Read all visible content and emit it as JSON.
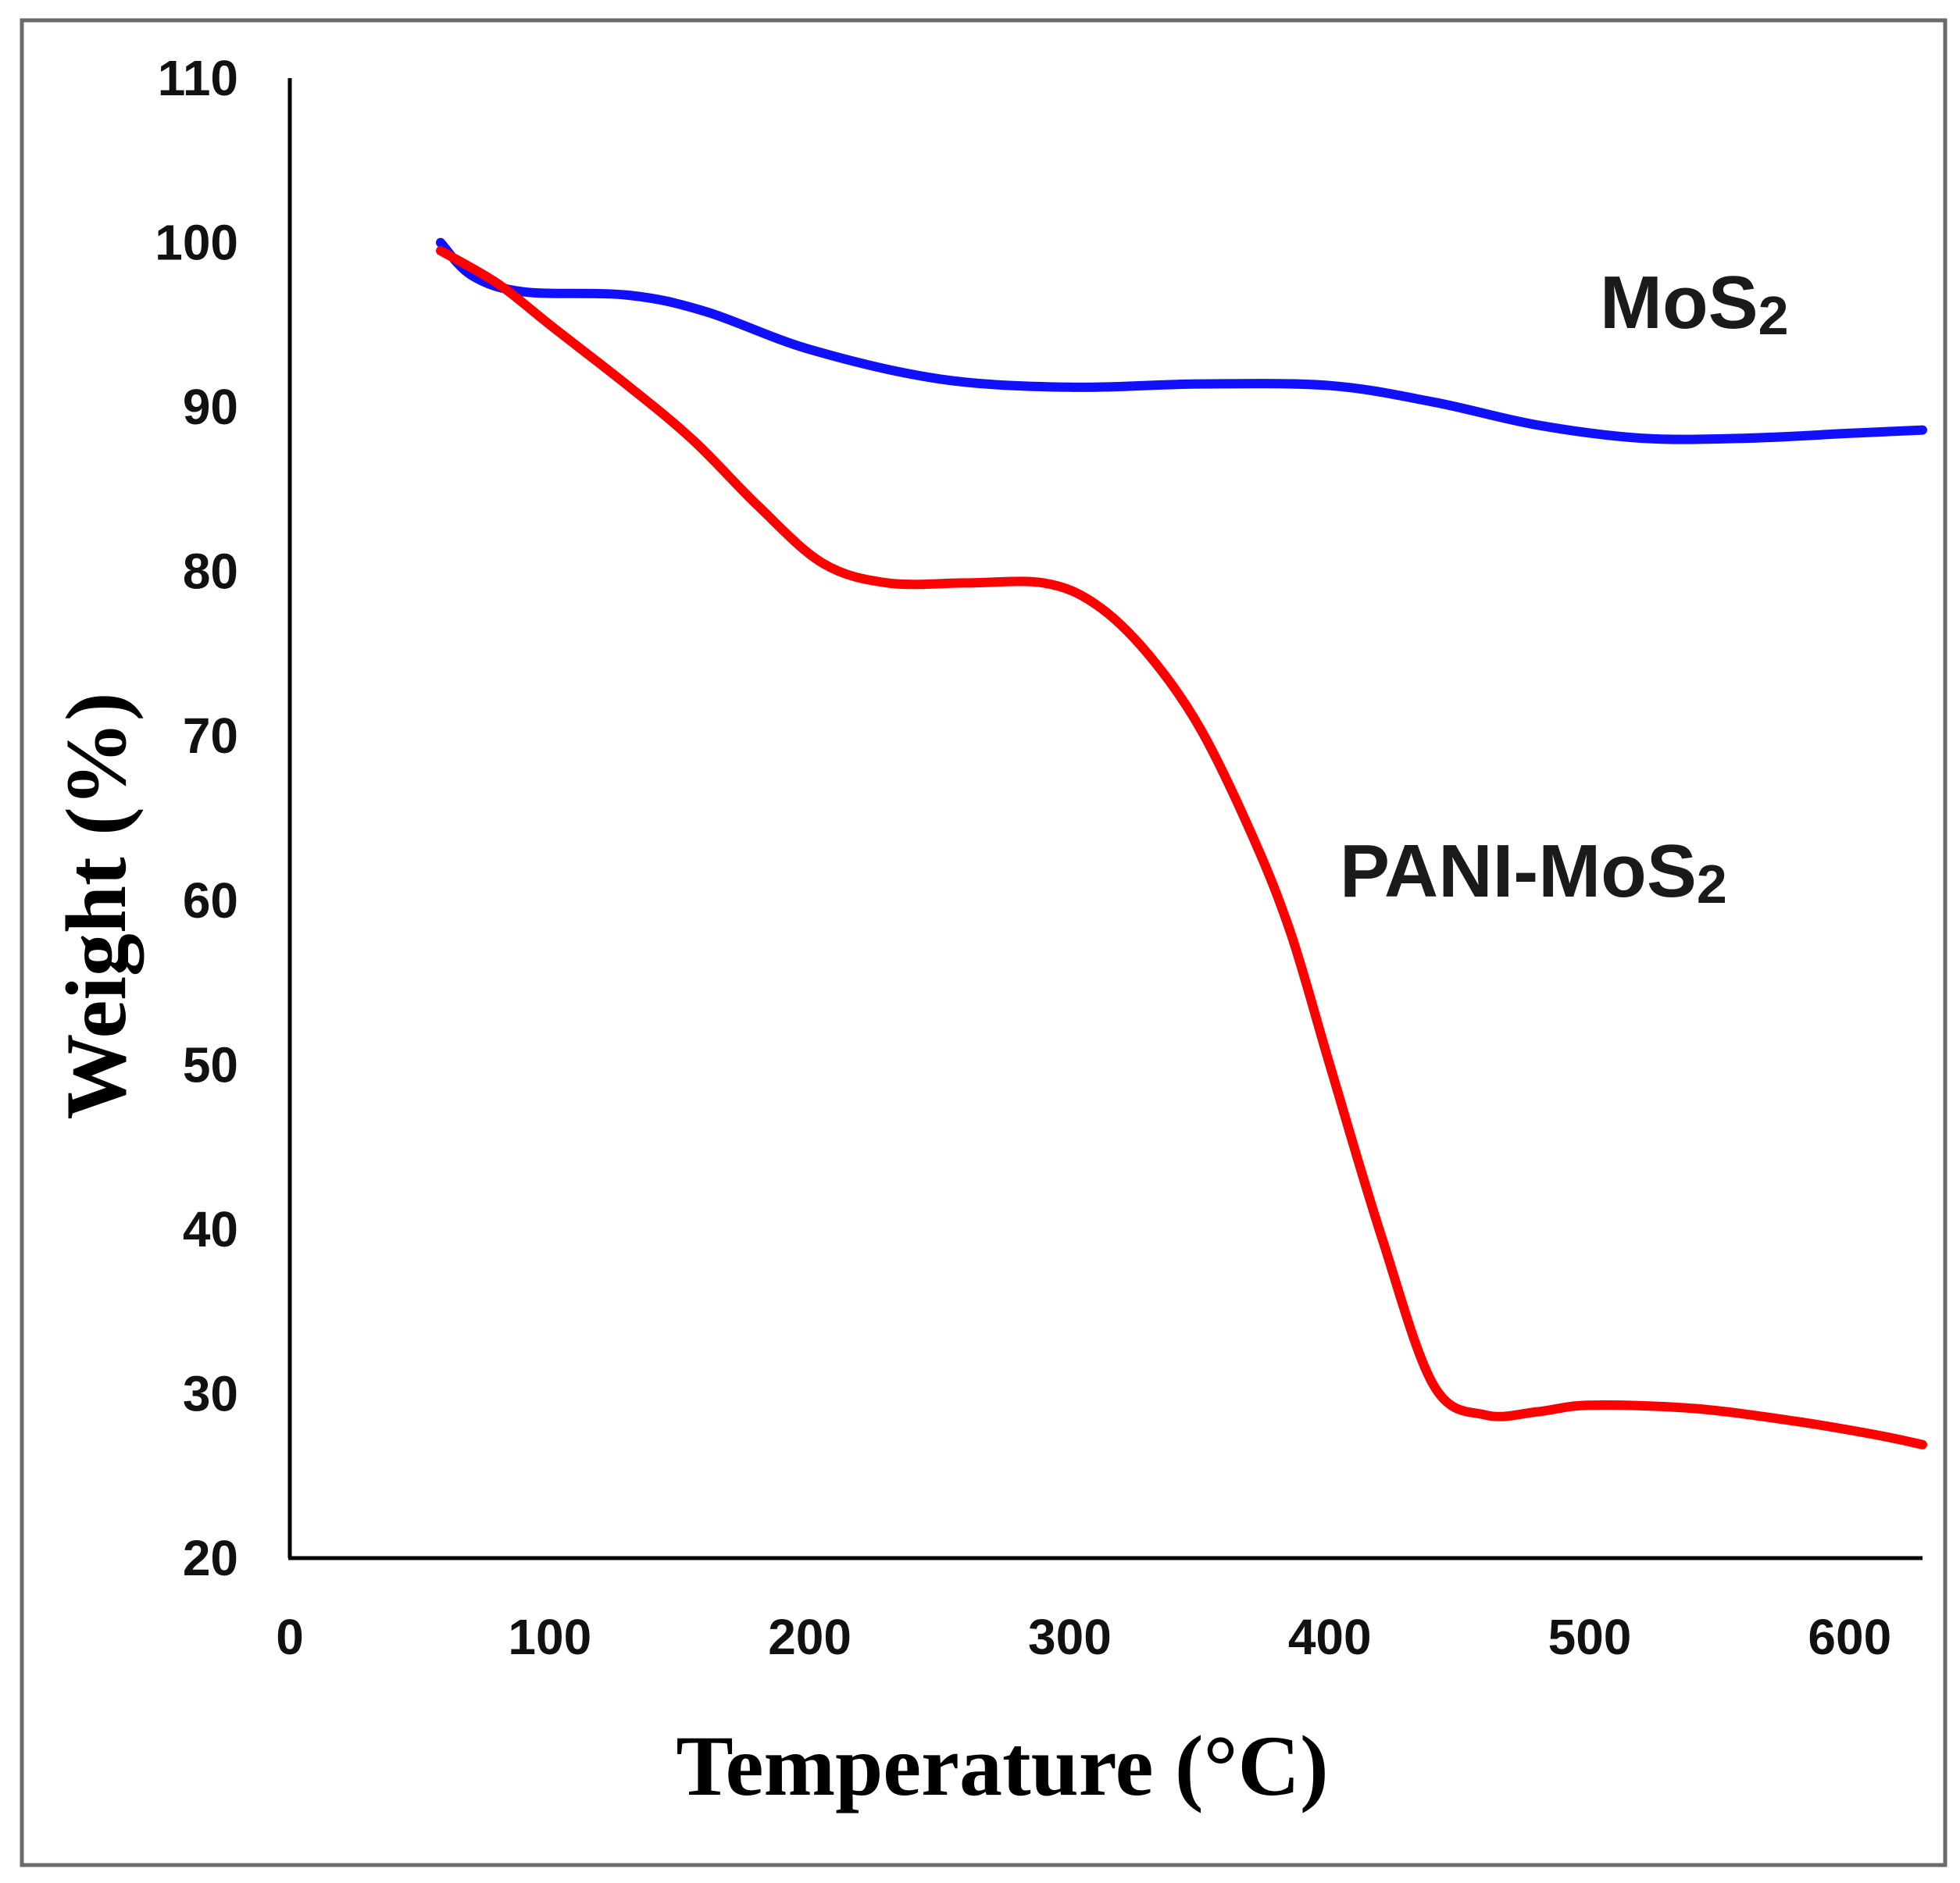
{
  "chart_data": {
    "type": "line",
    "title": "",
    "xlabel": "Temperature (°C)",
    "ylabel": "Weight (%)",
    "xlim": [
      0,
      628
    ],
    "ylim": [
      20,
      110
    ],
    "xticks": [
      "0",
      "100",
      "200",
      "300",
      "400",
      "500",
      "600"
    ],
    "yticks": [
      "20",
      "30",
      "40",
      "50",
      "60",
      "70",
      "80",
      "90",
      "100",
      "110"
    ],
    "grid": false,
    "series": [
      {
        "name": "MoS2",
        "label_main": "MoS",
        "label_sub": "2",
        "color": "#1010ff",
        "x": [
          58,
          70,
          90,
          130,
          160,
          200,
          250,
          300,
          350,
          400,
          440,
          480,
          520,
          560,
          600,
          628
        ],
        "y": [
          100,
          98,
          97,
          96.8,
          95.8,
          93.5,
          91.7,
          91.2,
          91.4,
          91.3,
          90.3,
          88.9,
          88.1,
          88.1,
          88.4,
          88.6
        ]
      },
      {
        "name": "PANI-MoS2",
        "label_main": "PANI-MoS",
        "label_sub": "2",
        "color": "#ff0000",
        "x": [
          58,
          80,
          100,
          130,
          155,
          180,
          205,
          230,
          260,
          290,
          310,
          330,
          350,
          370,
          385,
          400,
          420,
          440,
          460,
          480,
          500,
          540,
          580,
          610,
          628
        ],
        "y": [
          99.5,
          97.5,
          95,
          91.3,
          88,
          84,
          80.5,
          79.3,
          79.3,
          79.3,
          78,
          75,
          70.5,
          64,
          58,
          50,
          39.5,
          30.5,
          28.7,
          28.9,
          29.3,
          29.1,
          28.3,
          27.5,
          26.9
        ]
      }
    ]
  }
}
